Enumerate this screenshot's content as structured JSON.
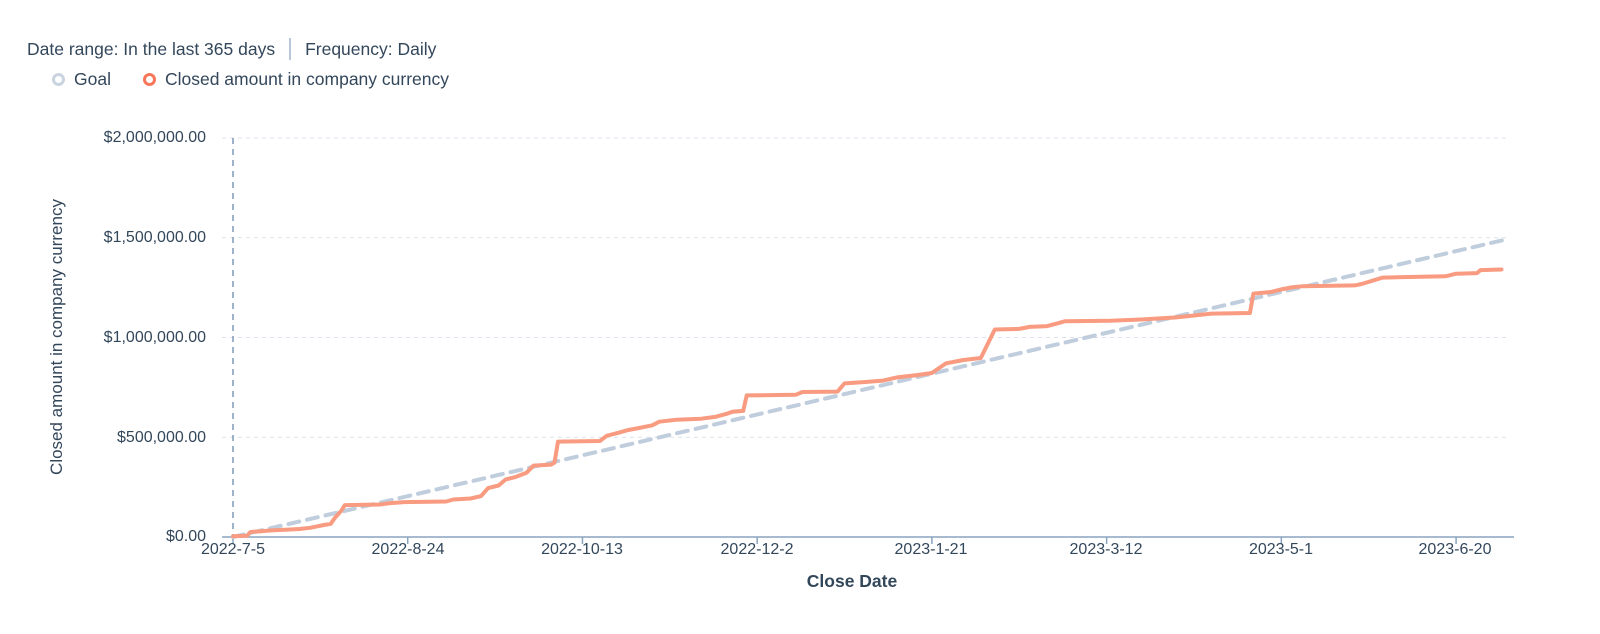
{
  "header": {
    "date_range": "Date range: In the last 365 days",
    "frequency": "Frequency: Daily"
  },
  "legend": {
    "items": [
      {
        "label": "Goal",
        "color": "#c9d4e0"
      },
      {
        "label": "Closed amount in company currency",
        "color": "#f8765a"
      }
    ]
  },
  "chart_data": {
    "type": "line",
    "title": "",
    "xlabel": "Close Date",
    "ylabel": "Closed amount in company currency",
    "ylim": [
      0,
      2000000
    ],
    "y_tick_labels": [
      "$0.00",
      "$500,000.00",
      "$1,000,000.00",
      "$1,500,000.00",
      "$2,000,000.00"
    ],
    "x_unit": "days since 2022-7-5",
    "xlim_days": [
      0,
      365
    ],
    "x_tick_days": [
      0,
      50,
      100,
      150,
      200,
      250,
      300,
      350
    ],
    "x_tick_labels": [
      "2022-7-5",
      "2022-8-24",
      "2022-10-13",
      "2022-12-2",
      "2023-1-21",
      "2023-3-12",
      "2023-5-1",
      "2023-6-20"
    ],
    "grid": "horizontal-dashed",
    "legend_position": "top-left",
    "start_marker_day": 0,
    "series": [
      {
        "name": "Goal",
        "style": "dashed",
        "color": "#c0cddd",
        "points": [
          [
            0,
            0
          ],
          [
            364,
            1490000
          ]
        ]
      },
      {
        "name": "Closed amount in company currency",
        "style": "solid",
        "color": "#f89b80",
        "points": [
          [
            0,
            4000
          ],
          [
            4,
            6000
          ],
          [
            5,
            25000
          ],
          [
            8,
            29000
          ],
          [
            11,
            33000
          ],
          [
            15,
            36000
          ],
          [
            19,
            40000
          ],
          [
            22,
            46000
          ],
          [
            24,
            53000
          ],
          [
            26,
            60000
          ],
          [
            28,
            66000
          ],
          [
            29,
            92000
          ],
          [
            31,
            132000
          ],
          [
            32,
            160000
          ],
          [
            42,
            163000
          ],
          [
            45,
            170000
          ],
          [
            49,
            175000
          ],
          [
            61,
            178000
          ],
          [
            63,
            188000
          ],
          [
            68,
            193000
          ],
          [
            71,
            205000
          ],
          [
            73,
            245000
          ],
          [
            76,
            258000
          ],
          [
            78,
            288000
          ],
          [
            81,
            302000
          ],
          [
            84,
            322000
          ],
          [
            86,
            358000
          ],
          [
            91,
            363000
          ],
          [
            92,
            373000
          ],
          [
            93,
            478000
          ],
          [
            105,
            481000
          ],
          [
            107,
            508000
          ],
          [
            110,
            521000
          ],
          [
            113,
            536000
          ],
          [
            116,
            546000
          ],
          [
            120,
            560000
          ],
          [
            122,
            578000
          ],
          [
            127,
            588000
          ],
          [
            134,
            593000
          ],
          [
            138,
            602000
          ],
          [
            141,
            616000
          ],
          [
            143,
            628000
          ],
          [
            146,
            632000
          ],
          [
            147,
            710000
          ],
          [
            161,
            713000
          ],
          [
            163,
            727000
          ],
          [
            173,
            729000
          ],
          [
            175,
            770000
          ],
          [
            181,
            777000
          ],
          [
            186,
            784000
          ],
          [
            190,
            800000
          ],
          [
            196,
            812000
          ],
          [
            200,
            822000
          ],
          [
            204,
            870000
          ],
          [
            209,
            887000
          ],
          [
            214,
            897000
          ],
          [
            218,
            1040000
          ],
          [
            225,
            1043000
          ],
          [
            228,
            1053000
          ],
          [
            233,
            1057000
          ],
          [
            236,
            1071000
          ],
          [
            238,
            1081000
          ],
          [
            251,
            1084000
          ],
          [
            261,
            1091000
          ],
          [
            270,
            1101000
          ],
          [
            280,
            1120000
          ],
          [
            291,
            1123000
          ],
          [
            292,
            1220000
          ],
          [
            297,
            1228000
          ],
          [
            300,
            1241000
          ],
          [
            303,
            1251000
          ],
          [
            306,
            1257000
          ],
          [
            321,
            1261000
          ],
          [
            323,
            1268000
          ],
          [
            329,
            1300000
          ],
          [
            347,
            1307000
          ],
          [
            350,
            1320000
          ],
          [
            356,
            1323000
          ],
          [
            357,
            1338000
          ],
          [
            363,
            1341000
          ]
        ]
      }
    ]
  }
}
